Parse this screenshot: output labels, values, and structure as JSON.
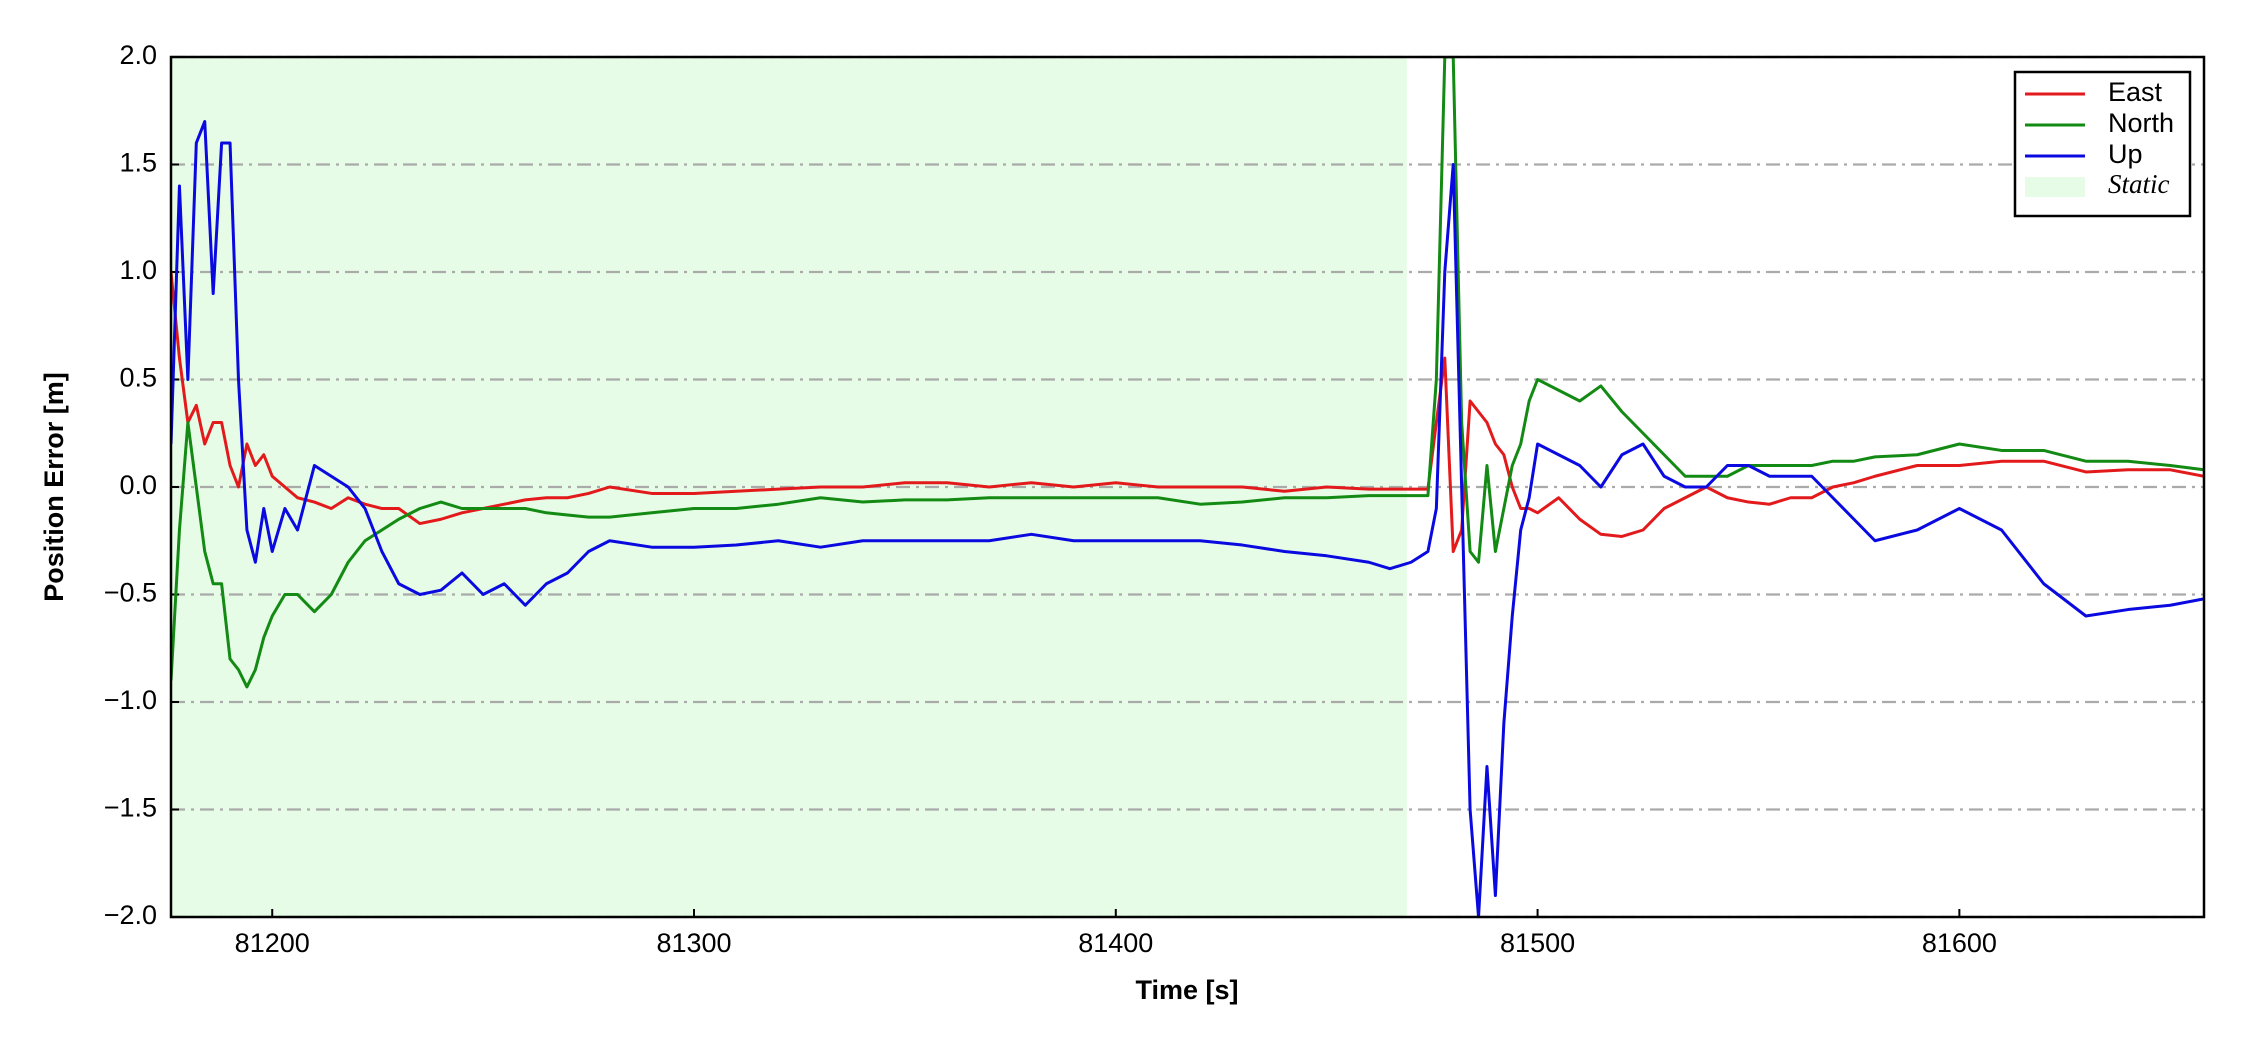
{
  "chart_data": {
    "type": "line",
    "x_label": "Time [s]",
    "y_label": "Position Error [m]",
    "xlim": [
      81176,
      81658
    ],
    "ylim": [
      -2,
      2
    ],
    "xticks": [
      81200,
      81300,
      81400,
      81500,
      81600
    ],
    "yticks": [
      {
        "value": -2,
        "label": "−2.0"
      },
      {
        "value": -1.5,
        "label": "−1.5"
      },
      {
        "value": -1,
        "label": "−1.0"
      },
      {
        "value": -0.5,
        "label": "−0.5"
      },
      {
        "value": 0,
        "label": "0.0"
      },
      {
        "value": 0.5,
        "label": "0.5"
      },
      {
        "value": 1,
        "label": "1.0"
      },
      {
        "value": 1.5,
        "label": "1.5"
      },
      {
        "value": 2,
        "label": "2.0"
      }
    ],
    "grid": true,
    "legend": "upper right",
    "span": {
      "name": "Static",
      "color": "#e6fce6",
      "x": [
        81176,
        81469
      ]
    },
    "x": [
      81176,
      81178,
      81180,
      81182,
      81184,
      81186,
      81188,
      81190,
      81192,
      81194,
      81196,
      81198,
      81200,
      81203,
      81206,
      81210,
      81214,
      81218,
      81222,
      81226,
      81230,
      81235,
      81240,
      81245,
      81250,
      81255,
      81260,
      81265,
      81270,
      81275,
      81280,
      81290,
      81300,
      81310,
      81320,
      81330,
      81340,
      81350,
      81360,
      81370,
      81380,
      81390,
      81400,
      81410,
      81420,
      81430,
      81440,
      81450,
      81460,
      81465,
      81470,
      81474,
      81476,
      81478,
      81480,
      81482,
      81484,
      81486,
      81488,
      81490,
      81492,
      81494,
      81496,
      81498,
      81500,
      81505,
      81510,
      81515,
      81520,
      81525,
      81530,
      81535,
      81540,
      81545,
      81550,
      81555,
      81560,
      81565,
      81570,
      81575,
      81580,
      81590,
      81600,
      81610,
      81620,
      81630,
      81640,
      81650,
      81658
    ],
    "series": [
      {
        "name": "East",
        "color": "#e31a1c",
        "values": [
          1.0,
          0.6,
          0.3,
          0.38,
          0.2,
          0.3,
          0.3,
          0.1,
          0.0,
          0.2,
          0.1,
          0.15,
          0.05,
          0.0,
          -0.05,
          -0.07,
          -0.1,
          -0.05,
          -0.08,
          -0.1,
          -0.1,
          -0.17,
          -0.15,
          -0.12,
          -0.1,
          -0.08,
          -0.06,
          -0.05,
          -0.05,
          -0.03,
          0.0,
          -0.03,
          -0.03,
          -0.02,
          -0.01,
          0.0,
          0.0,
          0.02,
          0.02,
          0.0,
          0.02,
          0.0,
          0.02,
          0.0,
          0.0,
          0.0,
          -0.02,
          0.0,
          -0.01,
          -0.01,
          -0.01,
          -0.01,
          0.3,
          0.6,
          -0.3,
          -0.2,
          0.4,
          0.35,
          0.3,
          0.2,
          0.15,
          0.0,
          -0.1,
          -0.1,
          -0.12,
          -0.05,
          -0.15,
          -0.22,
          -0.23,
          -0.2,
          -0.1,
          -0.05,
          0.0,
          -0.05,
          -0.07,
          -0.08,
          -0.05,
          -0.05,
          0.0,
          0.02,
          0.05,
          0.1,
          0.1,
          0.12,
          0.12,
          0.07,
          0.08,
          0.08,
          0.05
        ]
      },
      {
        "name": "North",
        "color": "#138a13",
        "values": [
          -0.9,
          -0.2,
          0.3,
          0.0,
          -0.3,
          -0.45,
          -0.45,
          -0.8,
          -0.85,
          -0.93,
          -0.85,
          -0.7,
          -0.6,
          -0.5,
          -0.5,
          -0.58,
          -0.5,
          -0.35,
          -0.25,
          -0.2,
          -0.15,
          -0.1,
          -0.07,
          -0.1,
          -0.1,
          -0.1,
          -0.1,
          -0.12,
          -0.13,
          -0.14,
          -0.14,
          -0.12,
          -0.1,
          -0.1,
          -0.08,
          -0.05,
          -0.07,
          -0.06,
          -0.06,
          -0.05,
          -0.05,
          -0.05,
          -0.05,
          -0.05,
          -0.08,
          -0.07,
          -0.05,
          -0.05,
          -0.04,
          -0.04,
          -0.04,
          -0.04,
          0.5,
          2.0,
          2.0,
          0.3,
          -0.3,
          -0.35,
          0.1,
          -0.3,
          -0.1,
          0.1,
          0.2,
          0.4,
          0.5,
          0.45,
          0.4,
          0.47,
          0.35,
          0.25,
          0.15,
          0.05,
          0.05,
          0.05,
          0.1,
          0.1,
          0.1,
          0.1,
          0.12,
          0.12,
          0.14,
          0.15,
          0.2,
          0.17,
          0.17,
          0.12,
          0.12,
          0.1,
          0.08
        ]
      },
      {
        "name": "Up",
        "color": "#0a0ae0",
        "values": [
          0.2,
          1.4,
          0.5,
          1.6,
          1.7,
          0.9,
          1.6,
          1.6,
          0.5,
          -0.2,
          -0.35,
          -0.1,
          -0.3,
          -0.1,
          -0.2,
          0.1,
          0.05,
          0.0,
          -0.1,
          -0.3,
          -0.45,
          -0.5,
          -0.48,
          -0.4,
          -0.5,
          -0.45,
          -0.55,
          -0.45,
          -0.4,
          -0.3,
          -0.25,
          -0.28,
          -0.28,
          -0.27,
          -0.25,
          -0.28,
          -0.25,
          -0.25,
          -0.25,
          -0.25,
          -0.22,
          -0.25,
          -0.25,
          -0.25,
          -0.25,
          -0.27,
          -0.3,
          -0.32,
          -0.35,
          -0.38,
          -0.35,
          -0.3,
          -0.1,
          1.0,
          1.5,
          0.0,
          -1.5,
          -2.0,
          -1.3,
          -1.9,
          -1.1,
          -0.6,
          -0.2,
          -0.05,
          0.2,
          0.15,
          0.1,
          0.0,
          0.15,
          0.2,
          0.05,
          0.0,
          0.0,
          0.1,
          0.1,
          0.05,
          0.05,
          0.05,
          -0.05,
          -0.15,
          -0.25,
          -0.2,
          -0.1,
          -0.2,
          -0.45,
          -0.6,
          -0.57,
          -0.55,
          -0.52
        ]
      }
    ]
  }
}
